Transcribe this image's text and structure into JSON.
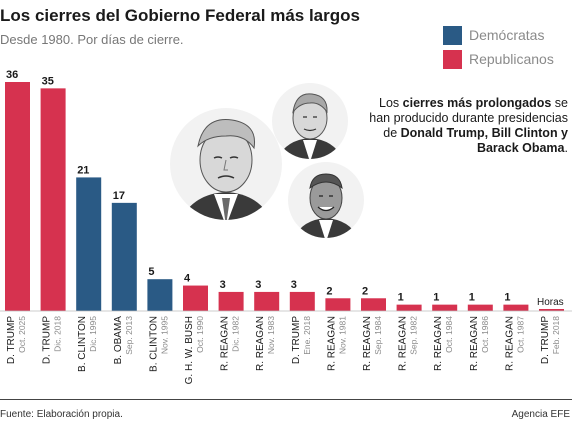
{
  "title": "Los cierres del Gobierno Federal más largos",
  "subtitle": "Desde 1980. Por días de cierre.",
  "legend": [
    {
      "label": "Demócratas",
      "color": "#2a5a85"
    },
    {
      "label": "Republicanos",
      "color": "#d6324f"
    }
  ],
  "annotation": {
    "part1": "Los ",
    "bold1": "cierres más prolongados",
    "part2": " se han producido durante presidencias de ",
    "bold2": "Donald Trump, Bill Clinton y Barack Obama",
    "part3": "."
  },
  "portraits": [
    {
      "name": "trump-portrait-icon",
      "label": "Donald Trump"
    },
    {
      "name": "clinton-portrait-icon",
      "label": "Bill Clinton"
    },
    {
      "name": "obama-portrait-icon",
      "label": "Barack Obama"
    }
  ],
  "source": "Fuente: Elaboración propia.",
  "credit": "Agencia EFE",
  "chart_data": {
    "type": "bar",
    "title": "Los cierres del Gobierno Federal más largos",
    "subtitle": "Desde 1980. Por días de cierre.",
    "ylim": [
      0,
      36
    ],
    "grid": false,
    "legend_position": "top-right",
    "bars": [
      {
        "president": "D. TRUMP",
        "date": "Oct. 2025",
        "value": 36,
        "label": "36",
        "party": "R"
      },
      {
        "president": "D. TRUMP",
        "date": "Dic. 2018",
        "value": 35,
        "label": "35",
        "party": "R"
      },
      {
        "president": "B. CLINTON",
        "date": "Dic. 1995",
        "value": 21,
        "label": "21",
        "party": "D"
      },
      {
        "president": "B. OBAMA",
        "date": "Sep. 2013",
        "value": 17,
        "label": "17",
        "party": "D"
      },
      {
        "president": "B. CLINTON",
        "date": "Nov. 1995",
        "value": 5,
        "label": "5",
        "party": "D"
      },
      {
        "president": "G. H. W. BUSH",
        "date": "Oct. 1990",
        "value": 4,
        "label": "4",
        "party": "R"
      },
      {
        "president": "R. REAGAN",
        "date": "Dic. 1982",
        "value": 3,
        "label": "3",
        "party": "R"
      },
      {
        "president": "R. REAGAN",
        "date": "Nov. 1983",
        "value": 3,
        "label": "3",
        "party": "R"
      },
      {
        "president": "D. TRUMP",
        "date": "Ene. 2018",
        "value": 3,
        "label": "3",
        "party": "R"
      },
      {
        "president": "R. REAGAN",
        "date": "Nov. 1981",
        "value": 2,
        "label": "2",
        "party": "R"
      },
      {
        "president": "R. REAGAN",
        "date": "Sep. 1984",
        "value": 2,
        "label": "2",
        "party": "R"
      },
      {
        "president": "R. REAGAN",
        "date": "Sep. 1982",
        "value": 1,
        "label": "1",
        "party": "R"
      },
      {
        "president": "R. REAGAN",
        "date": "Oct. 1984",
        "value": 1,
        "label": "1",
        "party": "R"
      },
      {
        "president": "R. REAGAN",
        "date": "Oct. 1986",
        "value": 1,
        "label": "1",
        "party": "R"
      },
      {
        "president": "R. REAGAN",
        "date": "Oct. 1987",
        "value": 1,
        "label": "1",
        "party": "R"
      },
      {
        "president": "D. TRUMP",
        "date": "Feb. 2018",
        "value": 0.1,
        "label": "Horas",
        "party": "R"
      }
    ]
  }
}
